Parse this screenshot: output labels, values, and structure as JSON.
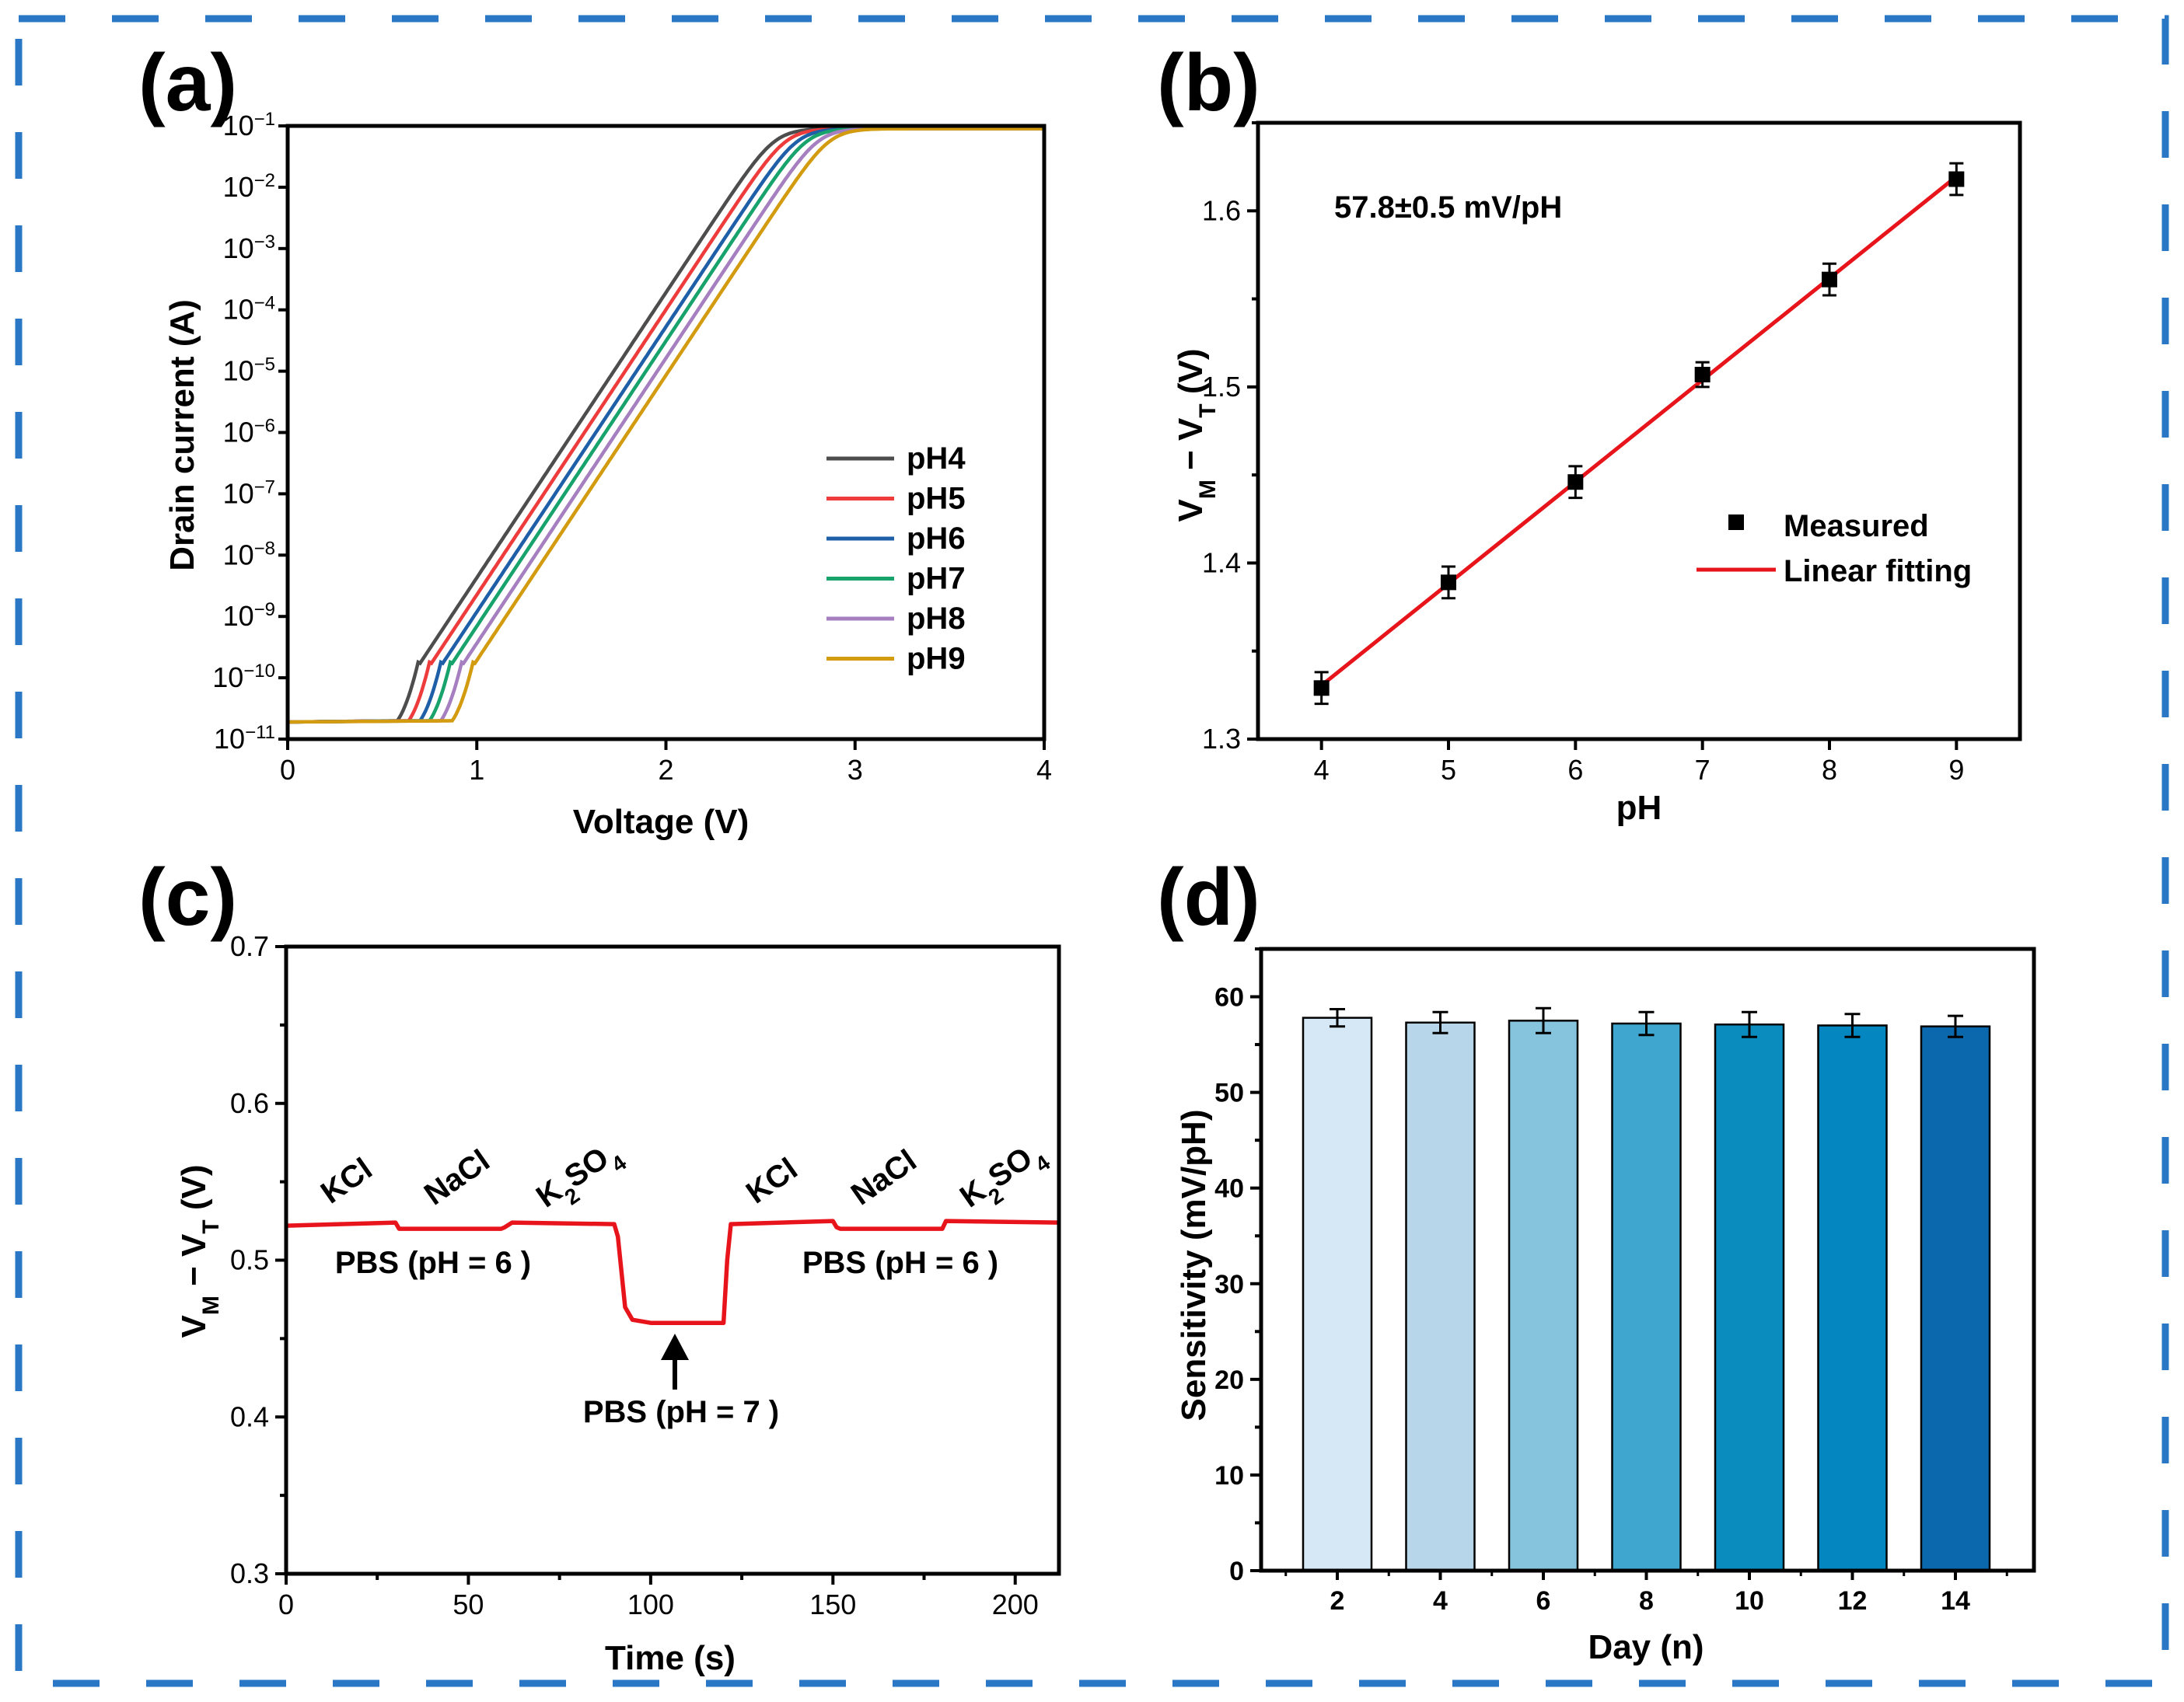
{
  "frame": {
    "border_color": "#2a78c5"
  },
  "chart_data": [
    {
      "panel": "(a)",
      "type": "line",
      "xlabel": "Voltage (V)",
      "ylabel": "Drain current (A)",
      "x_scale": "linear",
      "y_scale": "log",
      "xlim": [
        0,
        4
      ],
      "ylim": [
        1e-11,
        0.1
      ],
      "x_ticks": [
        "0",
        "1",
        "2",
        "3",
        "4"
      ],
      "y_tick_exponents": [
        "-11",
        "-10",
        "-9",
        "-8",
        "-7",
        "-6",
        "-5",
        "-4",
        "-3",
        "-2",
        "-1"
      ],
      "y_tick_base": "10",
      "legend_position": "right",
      "series": [
        {
          "name": "pH4",
          "color": "#4d4d4d",
          "onset_v": 0.58,
          "decades_per_volt": 4.65
        },
        {
          "name": "pH5",
          "color": "#ee3b3b",
          "onset_v": 0.64,
          "decades_per_volt": 4.65
        },
        {
          "name": "pH6",
          "color": "#1f5fa8",
          "onset_v": 0.7,
          "decades_per_volt": 4.65
        },
        {
          "name": "pH7",
          "color": "#17a36b",
          "onset_v": 0.75,
          "decades_per_volt": 4.65
        },
        {
          "name": "pH8",
          "color": "#a57fbf",
          "onset_v": 0.81,
          "decades_per_volt": 4.65
        },
        {
          "name": "pH9",
          "color": "#d39b0f",
          "onset_v": 0.87,
          "decades_per_volt": 4.65
        }
      ],
      "baseline_current": 1.9e-11,
      "saturation_current": 0.09
    },
    {
      "panel": "(b)",
      "type": "scatter",
      "xlabel": "pH",
      "ylabel_main": "V",
      "ylabel_sub1": "M",
      "ylabel_mid": " − V",
      "ylabel_sub2": "T",
      "ylabel_tail": " (V)",
      "xlim": [
        3.5,
        9.5
      ],
      "ylim": [
        1.3,
        1.65
      ],
      "x_ticks": [
        "4",
        "5",
        "6",
        "7",
        "8",
        "9"
      ],
      "y_ticks": [
        "1.3",
        "1.4",
        "1.5",
        "1.6"
      ],
      "annotation": "57.8±0.5 mV/pH",
      "legend_position": "right",
      "legend": [
        "Measured",
        "Linear fitting"
      ],
      "points": [
        {
          "x": 4,
          "y": 1.329,
          "err": 0.009
        },
        {
          "x": 5,
          "y": 1.389,
          "err": 0.009
        },
        {
          "x": 6,
          "y": 1.446,
          "err": 0.009
        },
        {
          "x": 7,
          "y": 1.507,
          "err": 0.007
        },
        {
          "x": 8,
          "y": 1.561,
          "err": 0.009
        },
        {
          "x": 9,
          "y": 1.618,
          "err": 0.009
        }
      ],
      "fit": {
        "x": [
          4,
          9
        ],
        "y": [
          1.3305,
          1.6195
        ],
        "color": "#e8141b"
      }
    },
    {
      "panel": "(c)",
      "type": "line",
      "xlabel": "Time (s)",
      "ylabel_main": "V",
      "ylabel_sub1": "M",
      "ylabel_mid": " − V",
      "ylabel_sub2": "T",
      "ylabel_tail": " (V)",
      "xlim": [
        0,
        212
      ],
      "ylim": [
        0.3,
        0.7
      ],
      "x_ticks": [
        "0",
        "50",
        "100",
        "150",
        "200"
      ],
      "y_ticks": [
        "0.3",
        "0.4",
        "0.5",
        "0.6",
        "0.7"
      ],
      "color": "#e8141b",
      "x": [
        0,
        30,
        31,
        59,
        60,
        62,
        90,
        91,
        93,
        95,
        100,
        120,
        121,
        122,
        150,
        151,
        152,
        180,
        181,
        212
      ],
      "y": [
        0.522,
        0.524,
        0.52,
        0.52,
        0.521,
        0.524,
        0.523,
        0.515,
        0.47,
        0.462,
        0.46,
        0.46,
        0.5,
        0.523,
        0.525,
        0.521,
        0.52,
        0.52,
        0.525,
        0.524
      ],
      "labels": {
        "kcl": "KCl",
        "nacl": "NaCl",
        "k2so4_k": "K",
        "k2so4_2": "2",
        "k2so4_so": "SO",
        "k2so4_4": "4",
        "pbs6": "PBS (pH = 6 )",
        "pbs7": "PBS (pH = 7 )"
      }
    },
    {
      "panel": "(d)",
      "type": "bar",
      "xlabel": "Day (n)",
      "ylabel": "Sensitivity (mV/pH)",
      "ylim": [
        0,
        65
      ],
      "y_ticks": [
        "0",
        "10",
        "20",
        "30",
        "40",
        "50",
        "60"
      ],
      "categories": [
        "2",
        "4",
        "6",
        "8",
        "10",
        "12",
        "14"
      ],
      "values": [
        57.8,
        57.3,
        57.5,
        57.2,
        57.1,
        57.0,
        56.9
      ],
      "errors": [
        0.9,
        1.1,
        1.3,
        1.2,
        1.3,
        1.2,
        1.1
      ],
      "colors": [
        "#d6e8f5",
        "#b8d6e9",
        "#86c3dd",
        "#3fa6cf",
        "#0a8cbf",
        "#0487c0",
        "#0b68ac"
      ]
    }
  ]
}
